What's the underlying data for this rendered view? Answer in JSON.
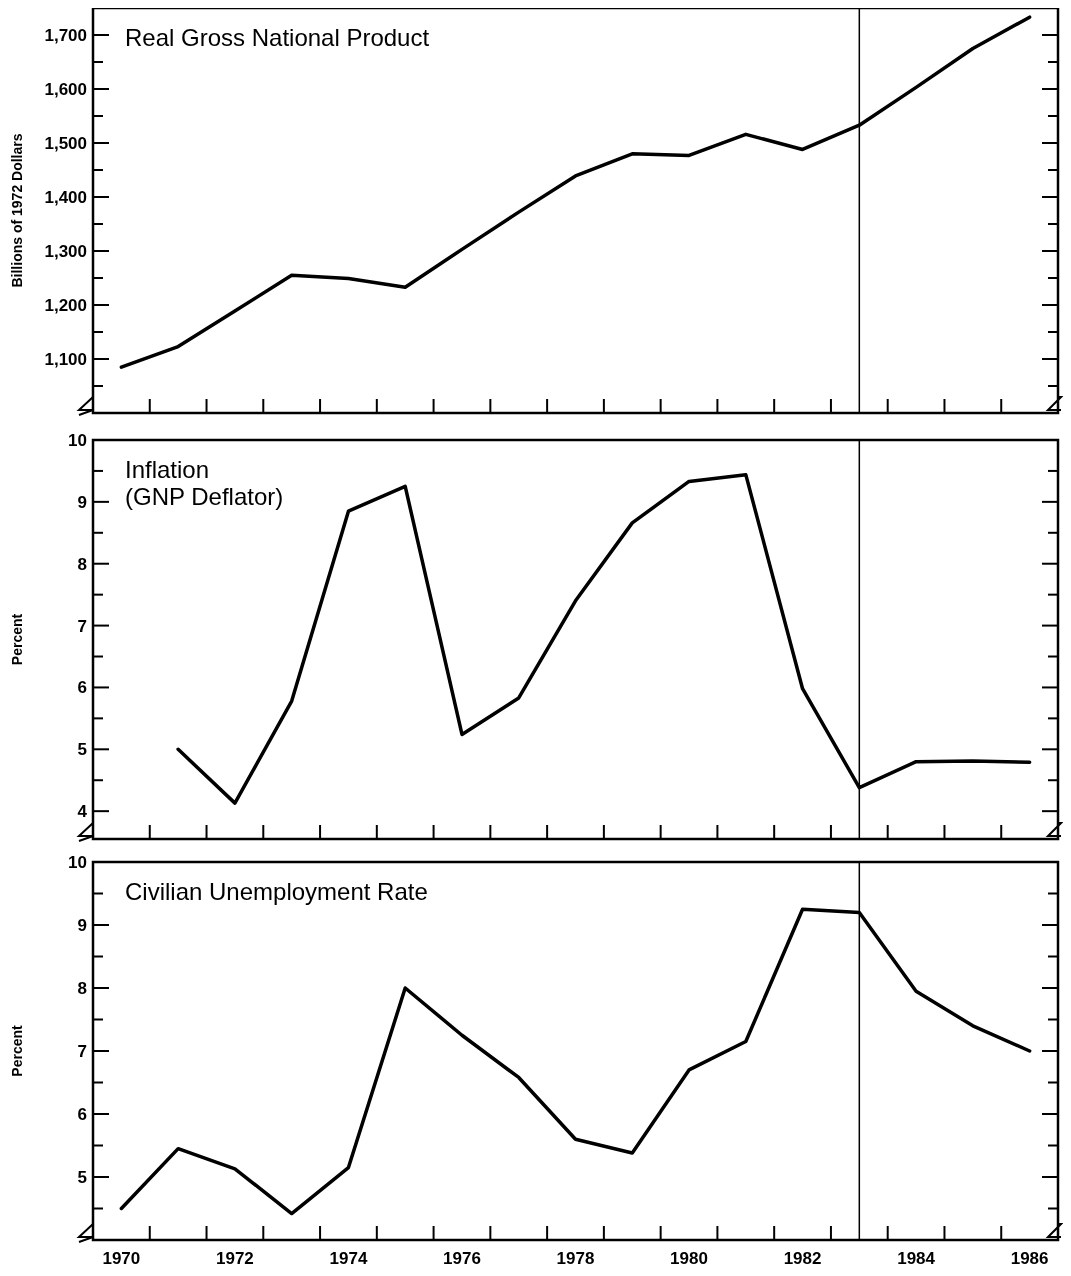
{
  "chart_data": [
    {
      "type": "line",
      "title": "Real Gross National Product",
      "ylabel": "Billions of 1972 Dollars",
      "xlim": [
        1970,
        1987
      ],
      "ylim": [
        1000,
        1750
      ],
      "tick_labels": "y",
      "line_style": "solid",
      "xticks": [
        {
          "value": 1971,
          "label": null
        },
        {
          "value": 1972,
          "label": null
        },
        {
          "value": 1973,
          "label": null
        },
        {
          "value": 1974,
          "label": null
        },
        {
          "value": 1975,
          "label": null
        },
        {
          "value": 1976,
          "label": null
        },
        {
          "value": 1977,
          "label": null
        },
        {
          "value": 1978,
          "label": null
        },
        {
          "value": 1979,
          "label": null
        },
        {
          "value": 1980,
          "label": null
        },
        {
          "value": 1981,
          "label": null
        },
        {
          "value": 1982,
          "label": null
        },
        {
          "value": 1983,
          "label": null
        },
        {
          "value": 1984,
          "label": null
        },
        {
          "value": 1985,
          "label": null
        },
        {
          "value": 1986,
          "label": null
        }
      ],
      "yticks": [
        {
          "value": 1050,
          "label": null
        },
        {
          "value": 1100,
          "label": "1,100"
        },
        {
          "value": 1150,
          "label": null
        },
        {
          "value": 1200,
          "label": "1,200"
        },
        {
          "value": 1250,
          "label": null
        },
        {
          "value": 1300,
          "label": "1,300"
        },
        {
          "value": 1350,
          "label": null
        },
        {
          "value": 1400,
          "label": "1,400"
        },
        {
          "value": 1450,
          "label": null
        },
        {
          "value": 1500,
          "label": "1,500"
        },
        {
          "value": 1550,
          "label": null
        },
        {
          "value": 1600,
          "label": "1,600"
        },
        {
          "value": 1650,
          "label": null
        },
        {
          "value": 1700,
          "label": "1,700"
        }
      ],
      "ref_lines": [
        {
          "axis": "x",
          "value": 1983.5,
          "color": "#000000"
        }
      ],
      "x": [
        1970.5,
        1971.5,
        1972.5,
        1973.5,
        1974.5,
        1975.5,
        1976.5,
        1977.5,
        1978.5,
        1979.5,
        1980.5,
        1981.5,
        1982.5,
        1983.5,
        1984.5,
        1985.5,
        1986.5
      ],
      "series": [
        {
          "color": "#000000",
          "values": [
            1085,
            1123,
            1189,
            1255,
            1249,
            1233,
            1303,
            1372,
            1439,
            1480,
            1477,
            1516,
            1488,
            1533,
            1603,
            1675,
            1733
          ]
        }
      ]
    },
    {
      "type": "line",
      "title": "Inflation\n(GNP Deflator)",
      "ylabel": "Percent",
      "xlim": [
        1970,
        1987
      ],
      "ylim": [
        3.55,
        10
      ],
      "tick_labels": "y",
      "line_style": "solid",
      "xticks": [
        {
          "value": 1971,
          "label": null
        },
        {
          "value": 1972,
          "label": null
        },
        {
          "value": 1973,
          "label": null
        },
        {
          "value": 1974,
          "label": null
        },
        {
          "value": 1975,
          "label": null
        },
        {
          "value": 1976,
          "label": null
        },
        {
          "value": 1977,
          "label": null
        },
        {
          "value": 1978,
          "label": null
        },
        {
          "value": 1979,
          "label": null
        },
        {
          "value": 1980,
          "label": null
        },
        {
          "value": 1981,
          "label": null
        },
        {
          "value": 1982,
          "label": null
        },
        {
          "value": 1983,
          "label": null
        },
        {
          "value": 1984,
          "label": null
        },
        {
          "value": 1985,
          "label": null
        },
        {
          "value": 1986,
          "label": null
        }
      ],
      "yticks": [
        4,
        {
          "value": 4.5,
          "label": null
        },
        5,
        {
          "value": 5.5,
          "label": null
        },
        6,
        {
          "value": 6.5,
          "label": null
        },
        7,
        {
          "value": 7.5,
          "label": null
        },
        8,
        {
          "value": 8.5,
          "label": null
        },
        9,
        {
          "value": 9.5,
          "label": null
        },
        10
      ],
      "ref_lines": [
        {
          "axis": "x",
          "value": 1983.5,
          "color": "#000000"
        }
      ],
      "x": [
        1971.5,
        1972.5,
        1973.5,
        1974.5,
        1975.5,
        1976.5,
        1977.5,
        1978.5,
        1979.5,
        1980.5,
        1981.5,
        1982.5,
        1983.5,
        1984.5,
        1985.5,
        1986.5
      ],
      "series": [
        {
          "color": "#000000",
          "values": [
            5.0,
            4.13,
            5.78,
            8.85,
            9.25,
            5.24,
            5.83,
            7.4,
            8.66,
            9.33,
            9.44,
            5.98,
            4.38,
            4.8,
            4.81,
            4.79
          ]
        }
      ]
    },
    {
      "type": "line",
      "title": "Civilian Unemployment Rate",
      "ylabel": "Percent",
      "xlim": [
        1970,
        1987
      ],
      "ylim": [
        4,
        10
      ],
      "line_style": "solid",
      "xticks": [
        {
          "value": 1970.5,
          "label": "1970"
        },
        {
          "value": 1971,
          "label": null
        },
        {
          "value": 1972,
          "label": null
        },
        {
          "value": 1972.5,
          "label": "1972"
        },
        {
          "value": 1973,
          "label": null
        },
        {
          "value": 1974,
          "label": null
        },
        {
          "value": 1974.5,
          "label": "1974"
        },
        {
          "value": 1975,
          "label": null
        },
        {
          "value": 1976,
          "label": null
        },
        {
          "value": 1976.5,
          "label": "1976"
        },
        {
          "value": 1977,
          "label": null
        },
        {
          "value": 1978,
          "label": null
        },
        {
          "value": 1978.5,
          "label": "1978"
        },
        {
          "value": 1979,
          "label": null
        },
        {
          "value": 1980,
          "label": null
        },
        {
          "value": 1980.5,
          "label": "1980"
        },
        {
          "value": 1981,
          "label": null
        },
        {
          "value": 1982,
          "label": null
        },
        {
          "value": 1982.5,
          "label": "1982"
        },
        {
          "value": 1983,
          "label": null
        },
        {
          "value": 1984,
          "label": null
        },
        {
          "value": 1984.5,
          "label": "1984"
        },
        {
          "value": 1985,
          "label": null
        },
        {
          "value": 1986,
          "label": null
        },
        {
          "value": 1986.5,
          "label": "1986"
        }
      ],
      "yticks": [
        {
          "value": 4.5,
          "label": null
        },
        5,
        {
          "value": 5.5,
          "label": null
        },
        6,
        {
          "value": 6.5,
          "label": null
        },
        7,
        {
          "value": 7.5,
          "label": null
        },
        8,
        {
          "value": 8.5,
          "label": null
        },
        9,
        {
          "value": 9.5,
          "label": null
        },
        10
      ],
      "ref_lines": [
        {
          "axis": "x",
          "value": 1983.5,
          "color": "#000000"
        }
      ],
      "x": [
        1970.5,
        1971.5,
        1972.5,
        1973.5,
        1974.5,
        1975.5,
        1976.5,
        1977.5,
        1978.5,
        1979.5,
        1980.5,
        1981.5,
        1982.5,
        1983.5,
        1984.5,
        1985.5,
        1986.5
      ],
      "series": [
        {
          "color": "#000000",
          "values": [
            4.5,
            5.45,
            5.13,
            4.42,
            5.15,
            8.0,
            7.25,
            6.58,
            5.6,
            5.38,
            6.7,
            7.15,
            9.25,
            9.2,
            7.95,
            7.4,
            7.0
          ]
        }
      ]
    }
  ]
}
